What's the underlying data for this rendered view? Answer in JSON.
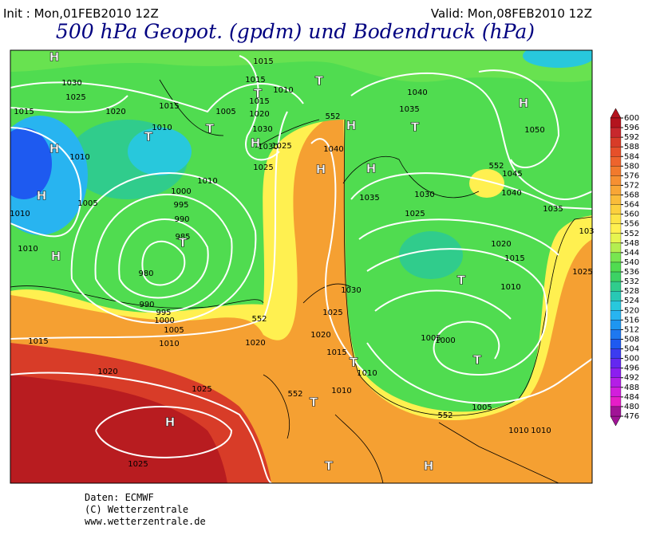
{
  "header": {
    "init": "Init : Mon,01FEB2010 12Z",
    "valid": "Valid: Mon,08FEB2010 12Z",
    "title": "500 hPa Geopot. (gpdm) und Bodendruck (hPa)"
  },
  "map": {
    "labels": [
      "H",
      "1030",
      "1025",
      "1015",
      "1020",
      "1015",
      "1010",
      "T",
      "H",
      "1010",
      "H",
      "1005",
      "1010",
      "1010",
      "H",
      "T",
      "1005",
      "1010",
      "1000",
      "995",
      "990",
      "985",
      "T",
      "980",
      "990",
      "995",
      "1000",
      "1005",
      "1010",
      "1015",
      "1020",
      "1025",
      "H",
      "1025",
      "1015",
      "1015",
      "T",
      "1010",
      "1015",
      "1020",
      "1030",
      "H",
      "1030",
      "1025",
      "1025",
      "552",
      "H",
      "1040",
      "H",
      "H",
      "1040",
      "1035",
      "T",
      "H",
      "1050",
      "552",
      "1045",
      "1040",
      "1035",
      "1035",
      "1030",
      "1025",
      "1020",
      "1015",
      "1010",
      "T",
      "1030",
      "552",
      "1025",
      "1020",
      "1015",
      "T",
      "1010",
      "1020",
      "1010",
      "552",
      "T",
      "1005",
      "1000",
      "T",
      "1005",
      "552",
      "1010",
      "1010",
      "T",
      "H",
      "103",
      "1025",
      "T"
    ]
  },
  "colorbar": {
    "ticks": [
      600,
      596,
      592,
      588,
      584,
      580,
      576,
      572,
      568,
      564,
      560,
      556,
      552,
      548,
      544,
      540,
      536,
      532,
      528,
      524,
      520,
      516,
      512,
      508,
      504,
      500,
      496,
      492,
      488,
      484,
      480,
      476
    ],
    "colors": [
      "#b4141e",
      "#c8282d",
      "#d83c28",
      "#e6502a",
      "#ee642d",
      "#f27a2d",
      "#f69032",
      "#f8a636",
      "#fabc3a",
      "#fcd03e",
      "#fde446",
      "#fff050",
      "#e6f550",
      "#b4ee50",
      "#78e650",
      "#50dc50",
      "#3cd264",
      "#30cc8c",
      "#28c8b4",
      "#28c8dc",
      "#28b4f0",
      "#1e96f0",
      "#1e78f0",
      "#1e5af0",
      "#3c3cf0",
      "#6428f0",
      "#8c1ef0",
      "#b41ee6",
      "#d21edc",
      "#e61ec8",
      "#a01496"
    ]
  },
  "footer": {
    "source": "Daten: ECMWF",
    "copyright": "(C) Wetterzentrale",
    "url": "www.wetterzentrale.de"
  }
}
